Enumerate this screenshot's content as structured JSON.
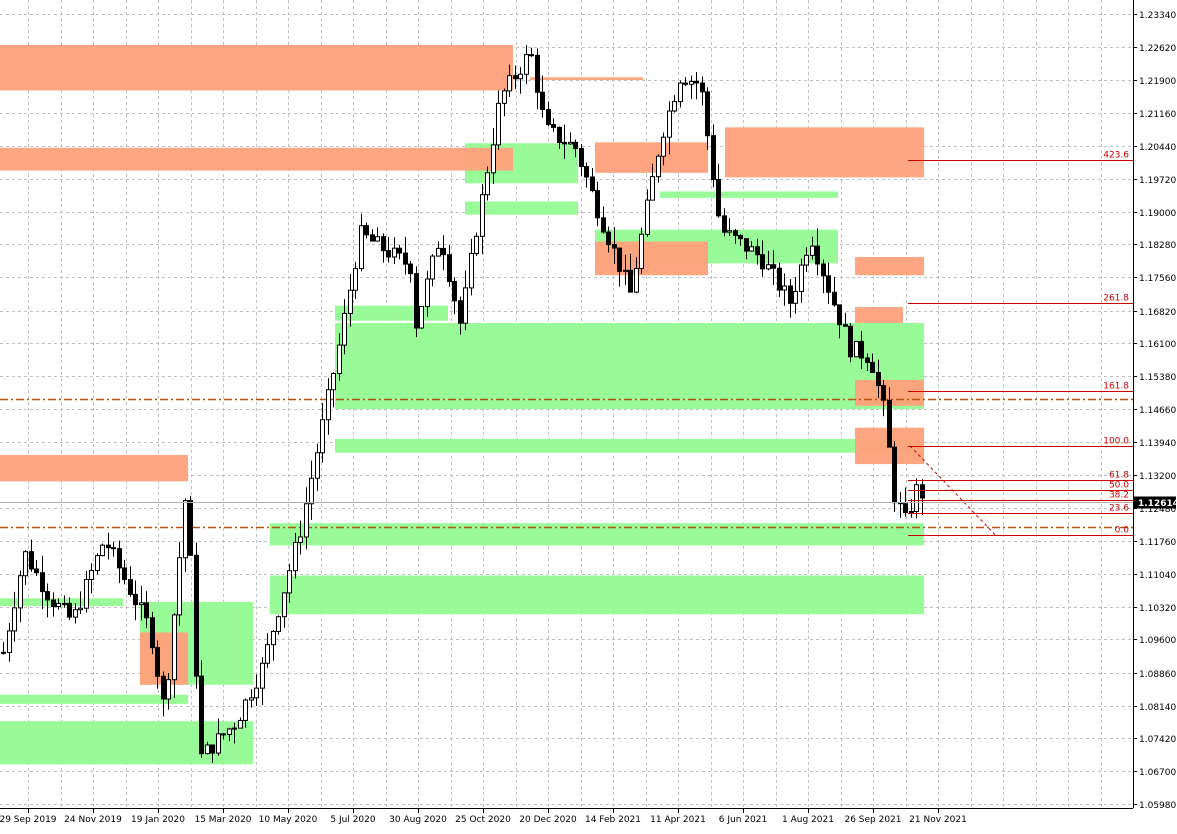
{
  "chart_data": {
    "type": "candlestick",
    "title": "",
    "grid": true,
    "ylim": [
      1.0598,
      1.2407
    ],
    "price_ticks": [
      "1.23340",
      "1.22620",
      "1.21900",
      "1.21160",
      "1.20440",
      "1.19720",
      "1.19000",
      "1.18280",
      "1.17560",
      "1.16820",
      "1.16100",
      "1.15380",
      "1.14660",
      "1.13940",
      "1.13200",
      "1.12480",
      "1.11760",
      "1.11040",
      "1.10320",
      "1.09600",
      "1.08860",
      "1.08140",
      "1.07420",
      "1.06700",
      "1.05980"
    ],
    "date_ticks": [
      "29 Sep 2019",
      "24 Nov 2019",
      "19 Jan 2020",
      "15 Mar 2020",
      "10 May 2020",
      "5 Jul 2020",
      "30 Aug 2020",
      "25 Oct 2020",
      "20 Dec 2020",
      "14 Feb 2021",
      "11 Apr 2021",
      "6 Jun 2021",
      "1 Aug 2021",
      "26 Sep 2021",
      "21 Nov 2021"
    ],
    "current_price": "1.12614",
    "colors": {
      "supply_zone": "#ffa07a",
      "demand_zone": "#98fb98",
      "overlap_zone": "#8fa830",
      "fib_line": "#cc0000",
      "level_line": "#b8520f",
      "grid": "#c0c0c0",
      "up_candle": "#ffffff",
      "down_candle": "#000000"
    },
    "fibonacci_levels": [
      {
        "label": "423.6",
        "price": 1.2013
      },
      {
        "label": "261.8",
        "price": 1.17
      },
      {
        "label": "161.8",
        "price": 1.1505
      },
      {
        "label": "100.0",
        "price": 1.1385
      },
      {
        "label": "61.8",
        "price": 1.131
      },
      {
        "label": "50.0",
        "price": 1.1288
      },
      {
        "label": "38.2",
        "price": 1.1265
      },
      {
        "label": "23.6",
        "price": 1.1237
      },
      {
        "label": "0.0",
        "price": 1.119
      }
    ],
    "horizontal_levels": [
      1.1488,
      1.1206
    ],
    "supply_zones": [
      {
        "from": "29 Sep 2019",
        "to": "25 Oct 2020",
        "top": 1.2266,
        "bottom": 1.2166
      },
      {
        "from": "29 Sep 2019",
        "to": "25 Oct 2020",
        "top": 1.204,
        "bottom": 1.199
      },
      {
        "from": "29 Sep 2019",
        "to": "19 Jan 2020",
        "top": 1.1365,
        "bottom": 1.1307
      },
      {
        "from": "20 Dec 2020",
        "to": "14 Feb 2021",
        "top": 1.2195,
        "bottom": 1.2189
      },
      {
        "from": "14 Feb 2021",
        "to": "11 Apr 2021",
        "top": 1.2052,
        "bottom": 1.1985
      },
      {
        "from": "14 Feb 2021",
        "to": "11 Apr 2021",
        "top": 1.1834,
        "bottom": 1.176
      },
      {
        "from": "6 Jun 2021",
        "to": "21 Nov 2021",
        "top": 1.2085,
        "bottom": 1.1975
      },
      {
        "from": "26 Sep 2021",
        "to": "21 Nov 2021",
        "top": 1.18,
        "bottom": 1.176
      },
      {
        "from": "26 Sep 2021",
        "to": "26 Sep 2021",
        "top": 1.169,
        "bottom": 1.1655
      },
      {
        "from": "26 Sep 2021",
        "to": "21 Nov 2021",
        "top": 1.153,
        "bottom": 1.1473
      },
      {
        "from": "26 Sep 2021",
        "to": "21 Nov 2021",
        "top": 1.1425,
        "bottom": 1.1345
      },
      {
        "from": "19 Jan 2020",
        "to": "19 Jan 2020",
        "top": 1.0975,
        "bottom": 1.0942
      },
      {
        "from": "19 Jan 2020",
        "to": "19 Jan 2020",
        "top": 1.0945,
        "bottom": 1.086
      }
    ],
    "demand_zones": [
      {
        "from": "25 Oct 2020",
        "to": "20 Dec 2020",
        "top": 1.205,
        "bottom": 1.1962
      },
      {
        "from": "25 Oct 2020",
        "to": "20 Dec 2020",
        "top": 1.1922,
        "bottom": 1.1893
      },
      {
        "from": "11 Apr 2021",
        "to": "1 Aug 2021",
        "top": 1.1944,
        "bottom": 1.193
      },
      {
        "from": "14 Feb 2021",
        "to": "1 Aug 2021",
        "top": 1.186,
        "bottom": 1.1786
      },
      {
        "from": "5 Jul 2020",
        "to": "30 Aug 2020",
        "top": 1.1693,
        "bottom": 1.166
      },
      {
        "from": "5 Jul 2020",
        "to": "21 Nov 2021",
        "top": 1.1655,
        "bottom": 1.1466
      },
      {
        "from": "5 Jul 2020",
        "to": "21 Nov 2021",
        "top": 1.14,
        "bottom": 1.137
      },
      {
        "from": "10 May 2020",
        "to": "21 Nov 2021",
        "top": 1.1215,
        "bottom": 1.1166
      },
      {
        "from": "10 May 2020",
        "to": "21 Nov 2021",
        "top": 1.11,
        "bottom": 1.1015
      },
      {
        "from": "29 Sep 2019",
        "to": "24 Nov 2019",
        "top": 1.105,
        "bottom": 1.1033
      },
      {
        "from": "19 Jan 2020",
        "to": "15 Mar 2020",
        "top": 1.1042,
        "bottom": 1.086
      },
      {
        "from": "29 Sep 2019",
        "to": "19 Jan 2020",
        "top": 1.0838,
        "bottom": 1.0818
      },
      {
        "from": "29 Sep 2019",
        "to": "15 Mar 2020",
        "top": 1.078,
        "bottom": 1.0685
      }
    ]
  }
}
